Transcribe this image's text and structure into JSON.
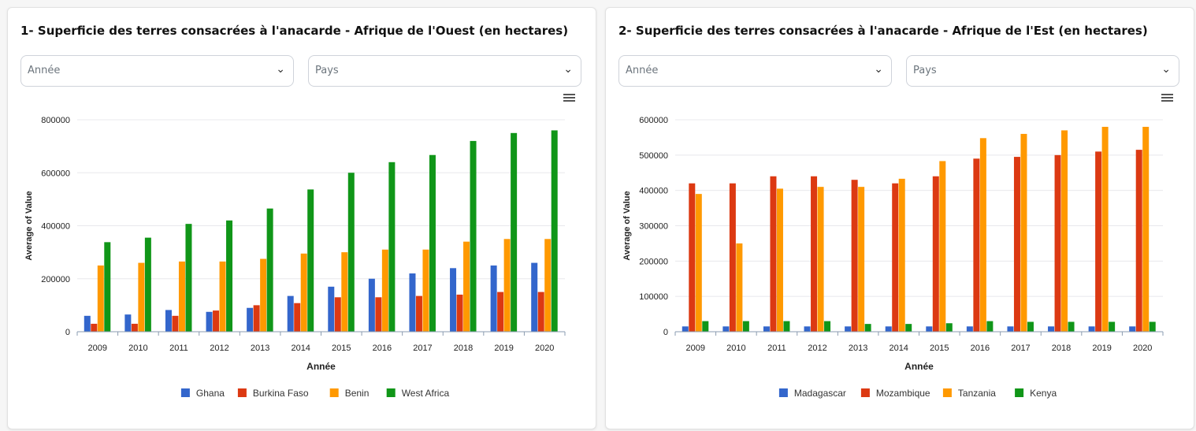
{
  "charts": [
    {
      "title": "1- Superficie des terres consacrées à l'anacarde - Afrique de l'Ouest (en hectares)",
      "filters": {
        "year_placeholder": "Année",
        "country_placeholder": "Pays"
      },
      "menu_icon": "hamburger-menu-icon"
    },
    {
      "title": "2- Superficie des terres consacrées à l'anacarde - Afrique de l'Est (en hectares)",
      "filters": {
        "year_placeholder": "Année",
        "country_placeholder": "Pays"
      },
      "menu_icon": "hamburger-menu-icon"
    }
  ],
  "chart_data": [
    {
      "type": "bar",
      "xlabel": "Année",
      "ylabel": "Average of Value",
      "ylim": [
        0,
        800000
      ],
      "yticks": [
        0,
        200000,
        400000,
        600000,
        800000
      ],
      "grid": true,
      "legend": "bottom",
      "categories": [
        "2009",
        "2010",
        "2011",
        "2012",
        "2013",
        "2014",
        "2015",
        "2016",
        "2017",
        "2018",
        "2019",
        "2020"
      ],
      "series": [
        {
          "name": "Ghana",
          "color": "#3366cc",
          "values": [
            60000,
            65000,
            82000,
            75000,
            90000,
            135000,
            170000,
            200000,
            220000,
            240000,
            250000,
            260000
          ]
        },
        {
          "name": "Burkina Faso",
          "color": "#dc3912",
          "values": [
            30000,
            30000,
            60000,
            80000,
            100000,
            108000,
            130000,
            130000,
            135000,
            140000,
            150000,
            150000
          ]
        },
        {
          "name": "Benin",
          "color": "#ff9900",
          "values": [
            250000,
            260000,
            265000,
            265000,
            275000,
            295000,
            300000,
            310000,
            310000,
            340000,
            350000,
            350000
          ]
        },
        {
          "name": "West Africa",
          "color": "#109618",
          "values": [
            338000,
            355000,
            407000,
            420000,
            465000,
            537000,
            600000,
            640000,
            667000,
            720000,
            750000,
            760000
          ]
        }
      ]
    },
    {
      "type": "bar",
      "xlabel": "Année",
      "ylabel": "Average of Value",
      "ylim": [
        0,
        600000
      ],
      "yticks": [
        0,
        100000,
        200000,
        300000,
        400000,
        500000,
        600000
      ],
      "grid": true,
      "legend": "bottom",
      "categories": [
        "2009",
        "2010",
        "2011",
        "2012",
        "2013",
        "2014",
        "2015",
        "2016",
        "2017",
        "2018",
        "2019",
        "2020"
      ],
      "series": [
        {
          "name": "Madagascar",
          "color": "#3366cc",
          "values": [
            15000,
            15000,
            15000,
            15000,
            15000,
            15000,
            15000,
            15000,
            15000,
            15000,
            15000,
            15000
          ]
        },
        {
          "name": "Mozambique",
          "color": "#dc3912",
          "values": [
            420000,
            420000,
            440000,
            440000,
            430000,
            420000,
            440000,
            490000,
            495000,
            500000,
            510000,
            515000
          ]
        },
        {
          "name": "Tanzania",
          "color": "#ff9900",
          "values": [
            390000,
            250000,
            405000,
            410000,
            410000,
            433000,
            483000,
            548000,
            560000,
            570000,
            580000,
            580000
          ]
        },
        {
          "name": "Kenya",
          "color": "#109618",
          "values": [
            30000,
            30000,
            30000,
            30000,
            22000,
            22000,
            24000,
            30000,
            28000,
            28000,
            28000,
            28000
          ]
        }
      ]
    }
  ]
}
